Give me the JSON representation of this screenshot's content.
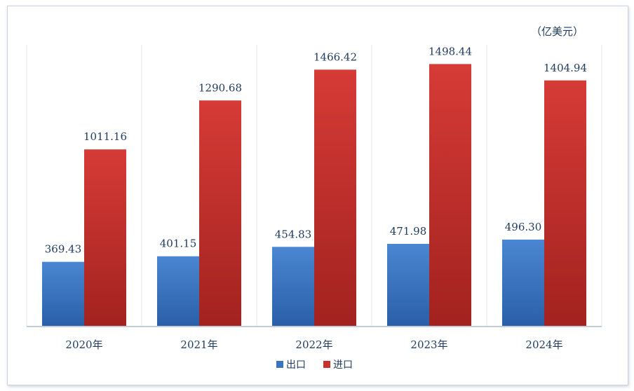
{
  "chart_data": {
    "type": "bar",
    "unit": "（亿美元）",
    "categories": [
      "2020年",
      "2021年",
      "2022年",
      "2023年",
      "2024年"
    ],
    "series": [
      {
        "name": "出口",
        "color": "#3a74bf",
        "values": [
          369.43,
          401.15,
          454.83,
          471.98,
          496.3
        ],
        "labels": [
          "369.43",
          "401.15",
          "454.83",
          "471.98",
          "496.30"
        ]
      },
      {
        "name": "进口",
        "color": "#c8302c",
        "values": [
          1011.16,
          1290.68,
          1466.42,
          1498.44,
          1404.94
        ],
        "labels": [
          "1011.16",
          "1290.68",
          "1466.42",
          "1498.44",
          "1404.94"
        ]
      }
    ],
    "ylim": [
      0,
      1600
    ],
    "legend": "bottom-center",
    "grid": false
  }
}
